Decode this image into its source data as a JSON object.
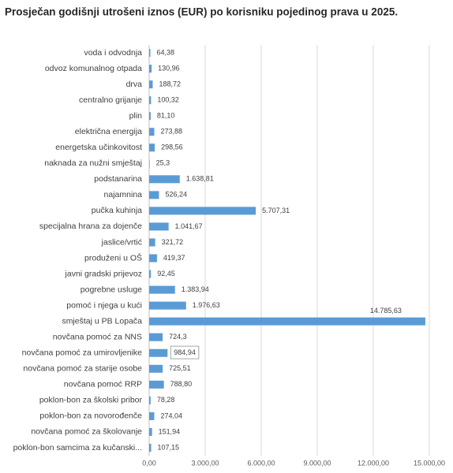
{
  "chart_data": {
    "type": "bar",
    "orientation": "horizontal",
    "title": "Prosječan godišnji utrošeni iznos (EUR) po korisniku pojedinog prava u 2025.",
    "categories": [
      "voda i odvodnja",
      "odvoz komunalnog otpada",
      "drva",
      "centralno grijanje",
      "plin",
      "električna energija",
      "energetska učinkovitost",
      "naknada za nužni smještaj",
      "podstanarina",
      "najamnina",
      "pučka kuhinja",
      "specijalna hrana za dojenče",
      "jaslice/vrtić",
      "produženi u OŠ",
      "javni gradski prijevoz",
      "pogrebne usluge",
      "pomoć i njega u kući",
      "smještaj u PB Lopača",
      "novčana pomoć za NNS",
      "novčana pomoć za umirovljenike",
      "novčana pomoć za starije osobe",
      "novčana pomoć RRP",
      "poklon-bon za školski pribor",
      "poklon-bon za novorođenče",
      "novčana pomoć za školovanje",
      "poklon-bon samcima za kučanski..."
    ],
    "values": [
      64.38,
      130.96,
      188.72,
      100.32,
      81.1,
      273.88,
      298.56,
      25.3,
      1638.81,
      526.24,
      5707.31,
      1041.67,
      321.72,
      419.37,
      92.45,
      1383.94,
      1976.63,
      14785.63,
      724.3,
      984.94,
      725.51,
      788.8,
      78.28,
      274.04,
      151.94,
      107.15
    ],
    "value_labels": [
      "64,38",
      "130,96",
      "188,72",
      "100,32",
      "81,10",
      "273,88",
      "298,56",
      "25,3",
      "1.638,81",
      "526,24",
      "5.707,31",
      "1.041,67",
      "321,72",
      "419,37",
      "92,45",
      "1.383,94",
      "1.976,63",
      "14.785,63",
      "724,3",
      "984,94",
      "725,51",
      "788,80",
      "78,28",
      "274,04",
      "151,94",
      "107,15"
    ],
    "color": "#5b9bd5",
    "xlim": [
      0,
      15000
    ],
    "xticks": [
      {
        "value": 0,
        "label": "0,00"
      },
      {
        "value": 3000,
        "label": "3.000,00"
      },
      {
        "value": 6000,
        "label": "6.000,00"
      },
      {
        "value": 9000,
        "label": "9.000,00"
      },
      {
        "value": 12000,
        "label": "12.000,00"
      },
      {
        "value": 15000,
        "label": "15.000,00"
      }
    ],
    "grid": true
  }
}
